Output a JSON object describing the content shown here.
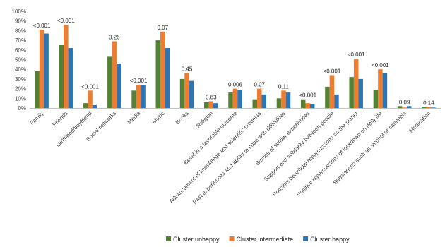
{
  "chart_data": {
    "type": "bar",
    "categories": [
      "Family",
      "Friends",
      "Girlfriend/boyfriend",
      "Social networks",
      "Media",
      "Music",
      "Books",
      "Religion",
      "Belief in a favorable outcome",
      "Advancement of knowledge and scientific progress",
      "Past experiences and ability to cope with difficulties",
      "Stories of similar experiences",
      "Support and solidarity between people",
      "Possible beneficial repercussions on the planet",
      "Positive repercussions of lockdown on daily life",
      "Substances such as alcohol or cannabis",
      "Medication"
    ],
    "series": [
      {
        "name": "Cluster unhappy",
        "color": "#548235",
        "values": [
          38,
          65,
          5,
          53,
          18,
          70,
          30,
          6,
          16,
          9,
          10,
          9,
          22,
          32,
          19,
          2,
          1
        ]
      },
      {
        "name": "Cluster intermediate",
        "color": "#ED7D31",
        "values": [
          81,
          86,
          18,
          69,
          24,
          79,
          36,
          7,
          20,
          20,
          18,
          5,
          34,
          51,
          40,
          0.5,
          1
        ]
      },
      {
        "name": "Cluster happy",
        "color": "#2E75B6",
        "values": [
          77,
          62,
          3,
          46,
          24,
          62,
          28,
          5,
          19,
          14,
          16,
          4,
          14,
          30,
          36,
          2,
          0.5
        ]
      }
    ],
    "p_values": [
      "<0.001",
      "<0.001",
      "<0.001",
      "0.26",
      "<0.001",
      "0.07",
      "0.45",
      "0.63",
      "0.006",
      "0.07",
      "0.11",
      "<0.001",
      "<0.001",
      "<0.001",
      "<0.001",
      "0.09",
      "0.14"
    ],
    "yticks": [
      "0%",
      "10%",
      "20%",
      "30%",
      "40%",
      "50%",
      "60%",
      "70%",
      "80%",
      "90%",
      "100%"
    ],
    "ylim": [
      0,
      100
    ],
    "grid": false,
    "legend_position": "bottom"
  }
}
